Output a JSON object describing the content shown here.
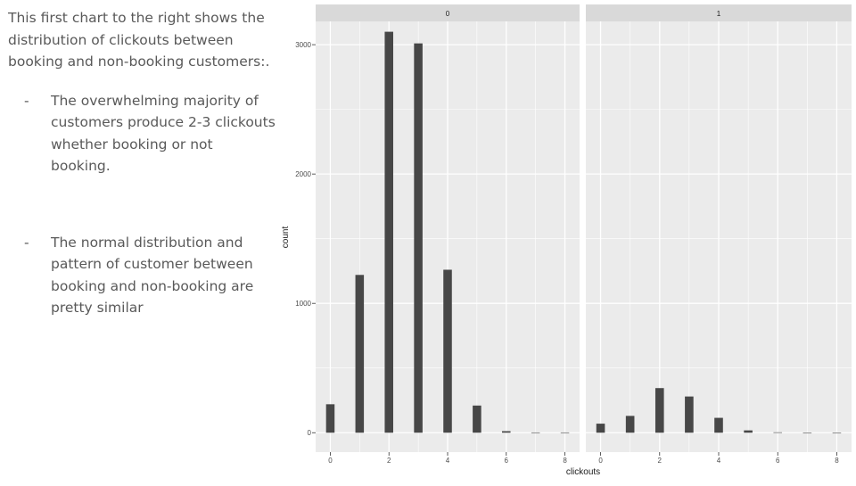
{
  "slide": {
    "intro": "This first chart to the right shows the distribution of clickouts between booking and non-booking customers:.",
    "bullets": [
      {
        "dash": "-",
        "text": "The overwhelming majority of customers produce 2-3 clickouts whether booking or not booking."
      },
      {
        "dash": "-",
        "text": "The normal distribution and pattern of customer between booking and non-booking are pretty similar"
      }
    ]
  },
  "chart_data": {
    "type": "bar",
    "xlabel": "clickouts",
    "ylabel": "count",
    "ylim": [
      -150,
      3180
    ],
    "xlim": [
      -0.5,
      8.5
    ],
    "yticks": [
      0,
      1000,
      2000,
      3000
    ],
    "xticks": [
      0,
      2,
      4,
      6,
      8
    ],
    "grid": true,
    "colors": {
      "bar": "#474747",
      "panel_bg": "#ebebeb",
      "strip_bg": "#d9d9d9",
      "grid": "#ffffff"
    },
    "facets": [
      {
        "label": "0",
        "x": [
          0,
          1,
          2,
          3,
          4,
          5,
          6,
          7,
          8
        ],
        "values": [
          220,
          1220,
          3100,
          3010,
          1260,
          210,
          12,
          2,
          2
        ]
      },
      {
        "label": "1",
        "x": [
          0,
          1,
          2,
          3,
          4,
          5,
          6,
          7,
          8
        ],
        "values": [
          70,
          130,
          345,
          280,
          115,
          18,
          3,
          0,
          0
        ]
      }
    ]
  }
}
